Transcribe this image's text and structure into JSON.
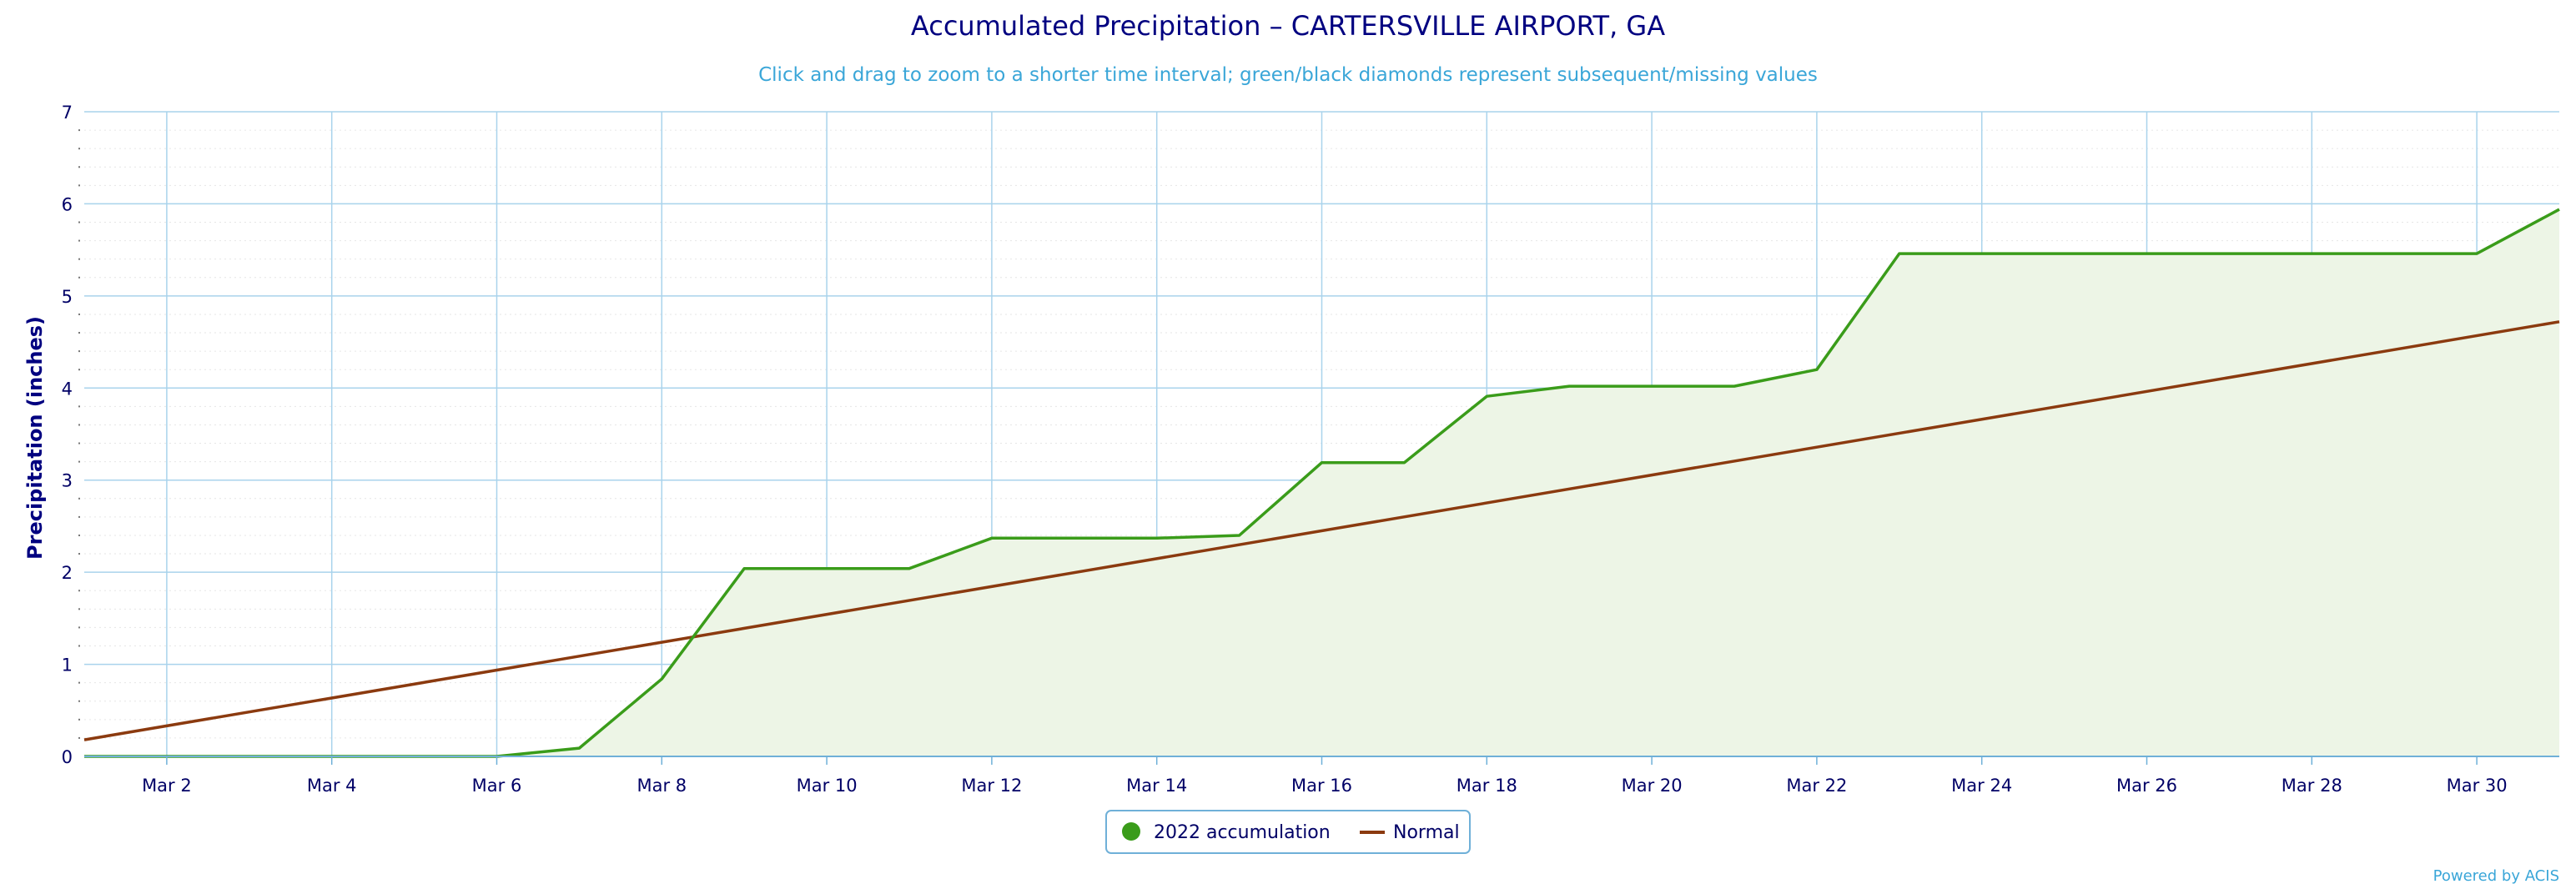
{
  "chart_data": {
    "type": "line",
    "title": "Accumulated Precipitation – CARTERSVILLE AIRPORT, GA",
    "subtitle": "Click and drag to zoom to a shorter time interval; green/black diamonds represent subsequent/missing values",
    "xlabel": "",
    "ylabel": "Precipitation (inches)",
    "ylim": [
      0,
      7
    ],
    "yticks": [
      "0",
      "1",
      "2",
      "3",
      "4",
      "5",
      "6",
      "7"
    ],
    "xlim_days": [
      1,
      31
    ],
    "xtick_days": [
      2,
      4,
      6,
      8,
      10,
      12,
      14,
      16,
      18,
      20,
      22,
      24,
      26,
      28,
      30
    ],
    "xticks": [
      "Mar 2",
      "Mar 4",
      "Mar 6",
      "Mar 8",
      "Mar 10",
      "Mar 12",
      "Mar 14",
      "Mar 16",
      "Mar 18",
      "Mar 20",
      "Mar 22",
      "Mar 24",
      "Mar 26",
      "Mar 28",
      "Mar 30"
    ],
    "grid": true,
    "legend_position": "bottom-center",
    "series": [
      {
        "name": "2022 accumulation",
        "color": "#3a9c1a",
        "fill": "#edf5e6",
        "x": [
          1,
          2,
          3,
          4,
          5,
          6,
          7,
          8,
          9,
          10,
          11,
          12,
          13,
          14,
          15,
          16,
          17,
          18,
          19,
          20,
          21,
          22,
          23,
          24,
          25,
          26,
          27,
          28,
          29,
          30,
          31
        ],
        "y": [
          0,
          0,
          0,
          0,
          0,
          0,
          0.09,
          0.84,
          2.04,
          2.04,
          2.04,
          2.37,
          2.37,
          2.37,
          2.4,
          3.19,
          3.19,
          3.91,
          4.02,
          4.02,
          4.02,
          4.2,
          5.46,
          5.46,
          5.46,
          5.46,
          5.46,
          5.46,
          5.46,
          5.46,
          5.94
        ]
      },
      {
        "name": "Normal",
        "color": "#8b3a0f",
        "x": [
          1,
          31
        ],
        "y": [
          0.18,
          4.72
        ]
      }
    ]
  },
  "credit": "Powered by ACIS"
}
